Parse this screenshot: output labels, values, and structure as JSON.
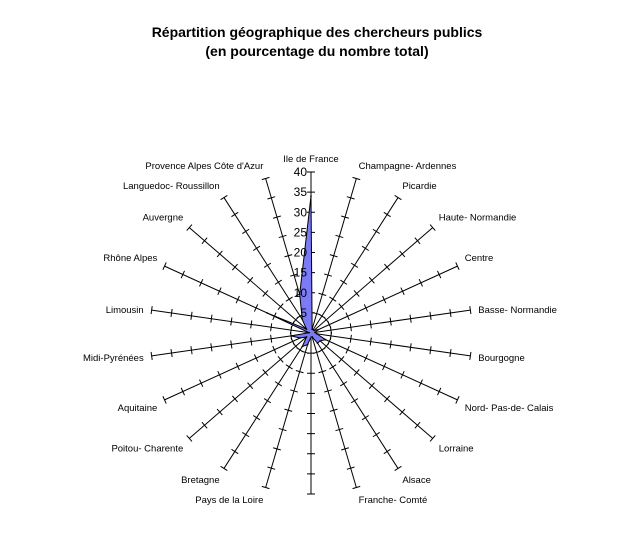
{
  "chart_data": {
    "type": "radar",
    "title_lines": [
      "Répartition géographique des chercheurs publics",
      "(en pourcentage du nombre total)"
    ],
    "categories": [
      "Ile de France",
      "Champagne- Ardennes",
      "Picardie",
      "Haute- Normandie",
      "Centre",
      "Basse- Normandie",
      "Bourgogne",
      "Nord- Pas-de- Calais",
      "Lorraine",
      "Alsace",
      "Franche- Comté",
      "Pays de la Loire",
      "Bretagne",
      "Poitou- Charente",
      "Aquitaine",
      "Midi-Pyrénées",
      "Limousin",
      "Rhône Alpes",
      "Auvergne",
      "Languedoc- Roussillon",
      "Provence Alpes Côte d'Azur"
    ],
    "values": [
      34,
      1,
      1,
      1,
      2,
      1,
      1.5,
      4,
      3,
      3,
      1,
      3,
      4,
      1.5,
      3,
      5,
      0.5,
      12,
      1.5,
      4,
      10
    ],
    "radial_range": [
      0,
      40
    ],
    "radial_ticks": [
      "5",
      "10",
      "15",
      "20",
      "25",
      "30",
      "35",
      "40"
    ],
    "fill_color": "#7B7BF7",
    "legend": "none"
  }
}
